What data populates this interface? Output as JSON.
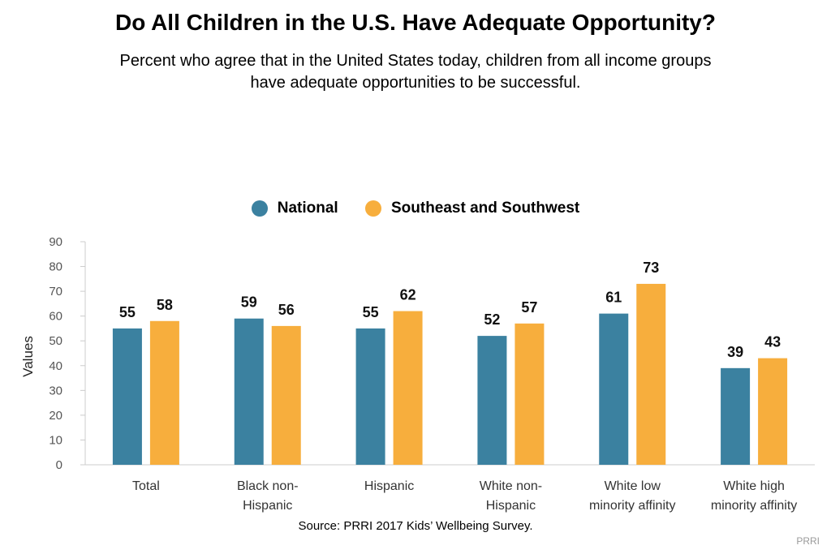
{
  "title": "Do All Children in the U.S. Have Adequate Opportunity?",
  "subtitle_lines": [
    "Percent who agree that in the United States today, children from all income groups",
    "have adequate opportunities to be successful."
  ],
  "source": "Source: PRRI 2017 Kids’ Wellbeing Survey.",
  "credit": "PRRI",
  "chart_data": {
    "type": "bar",
    "categories": [
      [
        "Total"
      ],
      [
        "Black non-",
        "Hispanic"
      ],
      [
        "Hispanic"
      ],
      [
        "White non-",
        "Hispanic"
      ],
      [
        "White low",
        "minority affinity"
      ],
      [
        "White high",
        "minority affinity"
      ]
    ],
    "series": [
      {
        "name": "National",
        "color": "#3b81a0",
        "values": [
          55,
          59,
          55,
          52,
          61,
          39
        ]
      },
      {
        "name": "Southeast and Southwest",
        "color": "#f7ae3d",
        "values": [
          58,
          56,
          62,
          57,
          73,
          43
        ]
      }
    ],
    "ylabel": "Values",
    "xlabel": "",
    "ylim": [
      0,
      90
    ],
    "yticks": [
      0,
      10,
      20,
      30,
      40,
      50,
      60,
      70,
      80,
      90
    ],
    "legend": "top-center",
    "grid": false
  }
}
